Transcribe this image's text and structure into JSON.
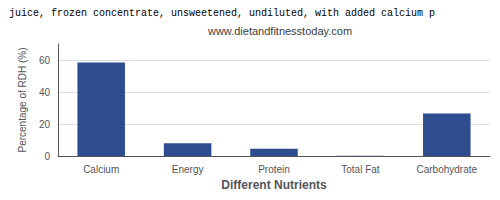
{
  "chart_data": {
    "type": "bar",
    "title": "juice, frozen concentrate, unsweetened, undiluted, with added calcium p",
    "subtitle": "www.dietandfitnesstoday.com",
    "xlabel": "Different Nutrients",
    "ylabel": "Percentage of RDH (%)",
    "categories": [
      "Calcium",
      "Energy",
      "Protein",
      "Total Fat",
      "Carbohydrate"
    ],
    "values": [
      58.5,
      8.0,
      4.5,
      0.2,
      26.5
    ],
    "color": "#2e4d8e",
    "ylim": [
      0,
      70
    ],
    "yticks": [
      0,
      20,
      40,
      60
    ],
    "grid": true
  }
}
